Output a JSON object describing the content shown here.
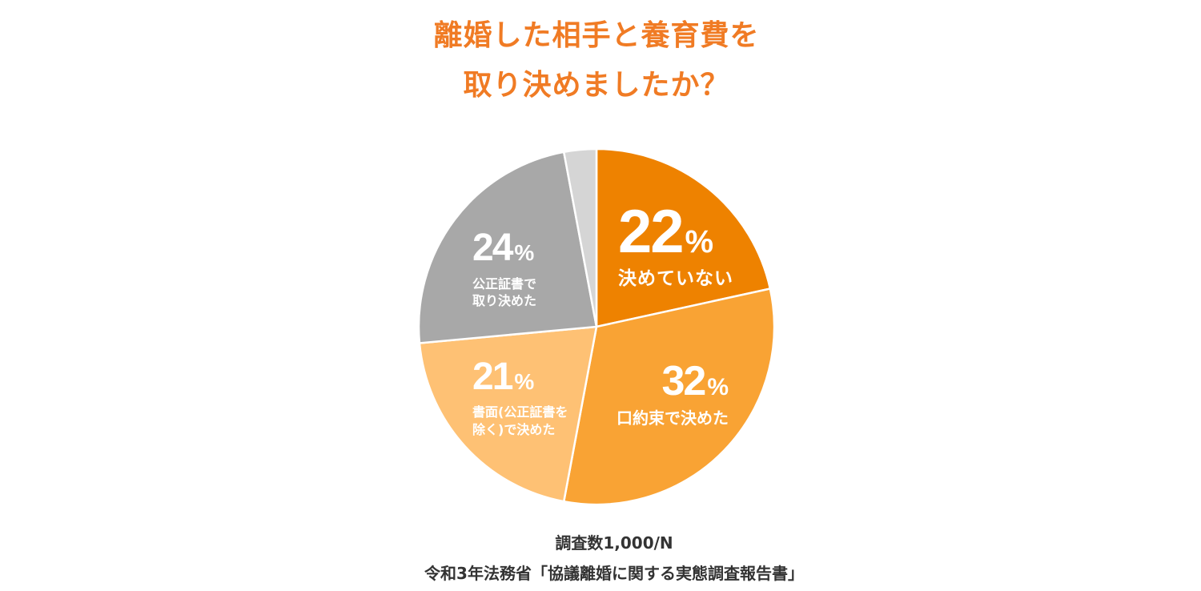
{
  "chart_data": {
    "type": "pie",
    "title_lines": [
      "離婚した相手と養育費を",
      "取り決めましたか？"
    ],
    "title_color": "#F07B24",
    "label_color": "#FFFFFF",
    "slices": [
      {
        "label_lines": [
          "決めていない"
        ],
        "value": 22,
        "unit": "%",
        "color": "#EE8200"
      },
      {
        "label_lines": [
          "口約束で決めた"
        ],
        "value": 32,
        "unit": "%",
        "color": "#F9A334"
      },
      {
        "label_lines": [
          "書面(公正証書を",
          "除く)で決めた"
        ],
        "value": 21,
        "unit": "%",
        "color": "#FEC174"
      },
      {
        "label_lines": [
          "公正証書で",
          "取り決めた"
        ],
        "value": 24,
        "unit": "%",
        "color": "#A8A8A8"
      },
      {
        "value": 3,
        "color": "#D5D5D5"
      }
    ]
  },
  "footer": {
    "sample_size": "調査数1,000/N",
    "source": "令和3年法務省「協議離婚に関する実態調査報告書」",
    "color": "#333333"
  }
}
